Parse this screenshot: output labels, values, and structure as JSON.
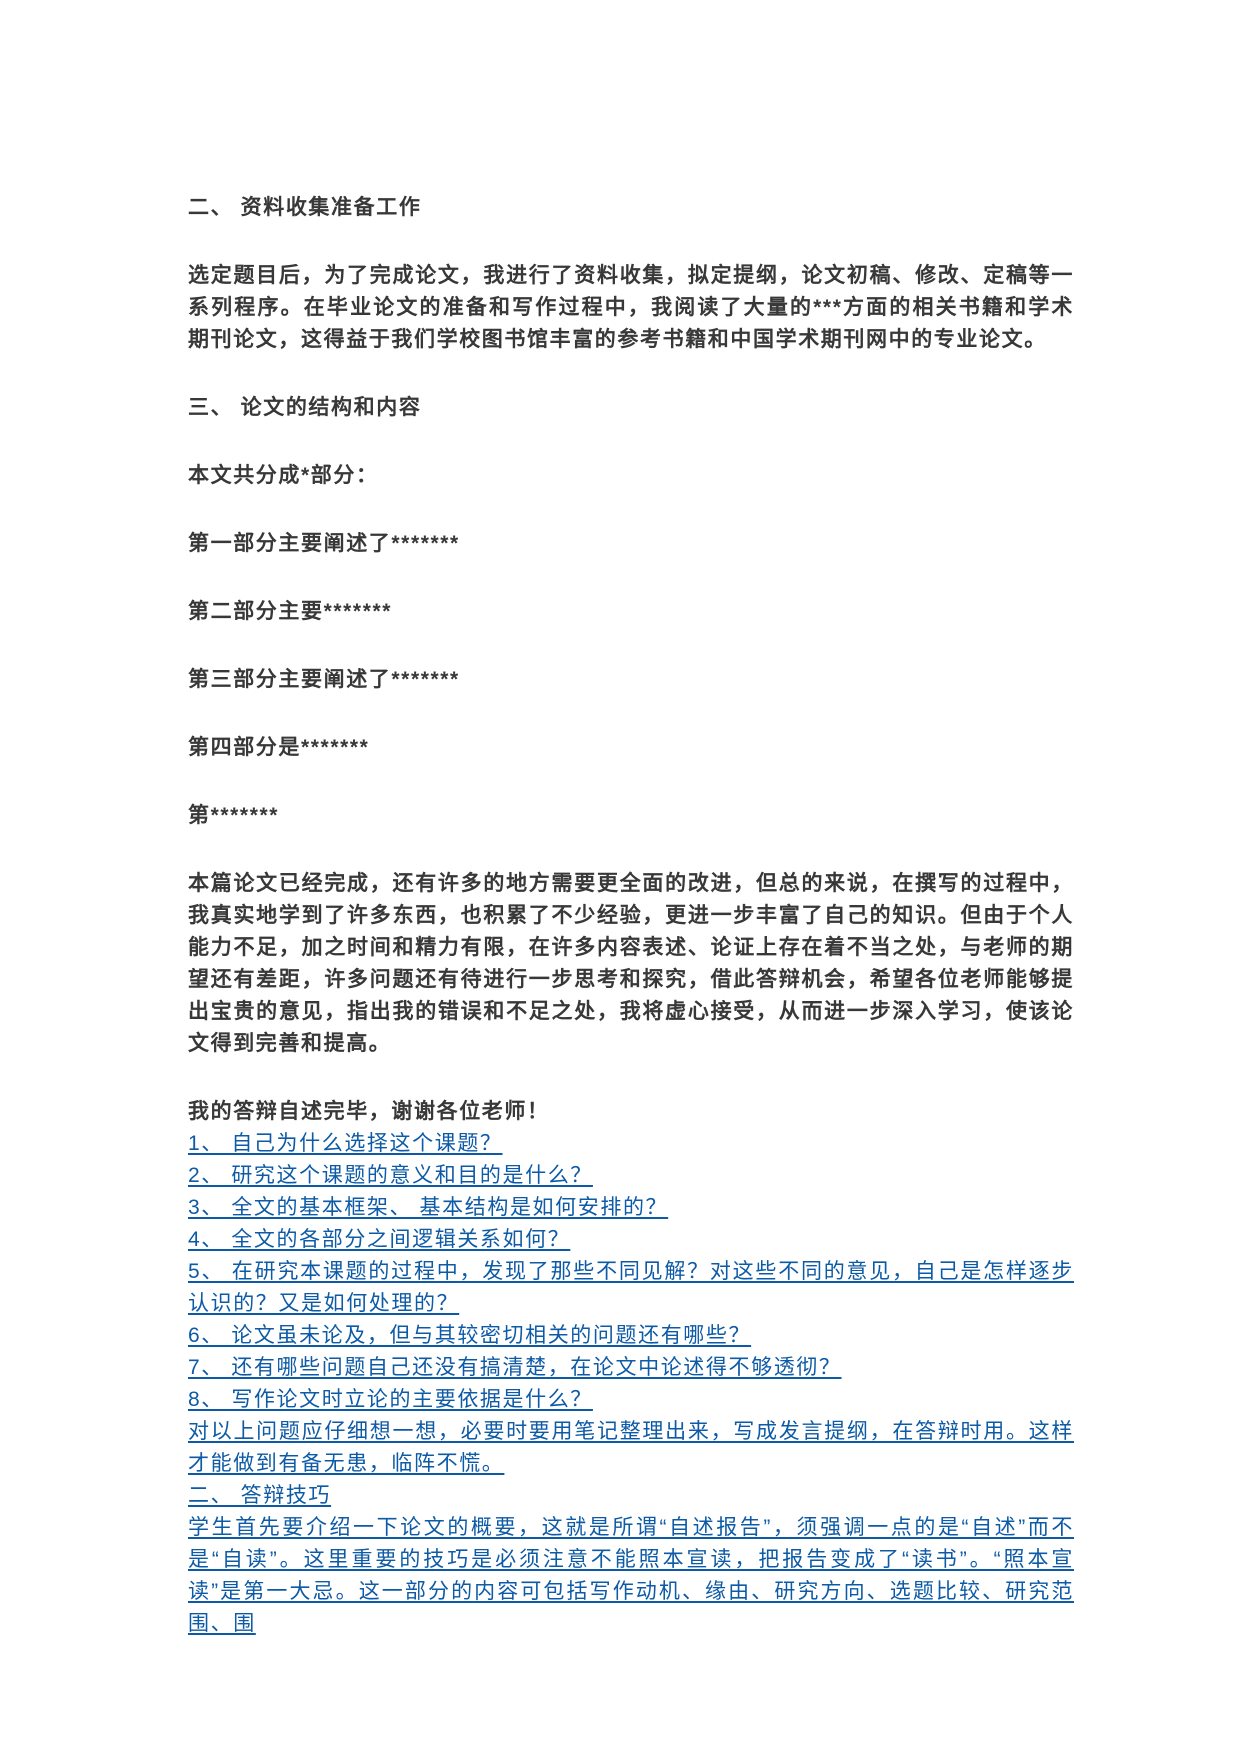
{
  "page": {
    "background": "#ffffff",
    "text_color": "#383838",
    "link_color": "#0d5aa6"
  },
  "sections": {
    "heading_materials": "二、 资料收集准备工作",
    "para_materials": "选定题目后，为了完成论文，我进行了资料收集，拟定提纲，论文初稿、修改、定稿等一系列程序。在毕业论文的准备和写作过程中，我阅读了大量的***方面的相关书籍和学术期刊论文，这得益于我们学校图书馆丰富的参考书籍和中国学术期刊网中的专业论文。",
    "heading_structure": "三、 论文的结构和内容",
    "para_division": "本文共分成*部分：",
    "parts": [
      "第一部分主要阐述了*******",
      "第二部分主要*******",
      "第三部分主要阐述了*******",
      "第四部分是*******",
      "第*******"
    ],
    "para_conclusion": "本篇论文已经完成，还有许多的地方需要更全面的改进，但总的来说，在撰写的过程中，我真实地学到了许多东西，也积累了不少经验，更进一步丰富了自己的知识。但由于个人能力不足，加之时间和精力有限，在许多内容表述、论证上存在着不当之处，与老师的期望还有差距，许多问题还有待进行一步思考和探究，借此答辩机会，希望各位老师能够提出宝贵的意见，指出我的错误和不足之处，我将虚心接受，从而进一步深入学习，使该论文得到完善和提高。",
    "closing": "我的答辩自述完毕，谢谢各位老师！"
  },
  "questions": [
    "1、 自己为什么选择这个课题？",
    "2、 研究这个课题的意义和目的是什么？",
    "3、 全文的基本框架、 基本结构是如何安排的？",
    "4、 全文的各部分之间逻辑关系如何？",
    "5、 在研究本课题的过程中，发现了那些不同见解？对这些不同的意见，自己是怎样逐步认识的？又是如何处理的？",
    "6、 论文虽未论及，但与其较密切相关的问题还有哪些？",
    "7、 还有哪些问题自己还没有搞清楚，在论文中论述得不够透彻？",
    "8、 写作论文时立论的主要依据是什么？"
  ],
  "advice": "对以上问题应仔细想一想，必要时要用笔记整理出来，写成发言提纲，在答辩时用。这样才能做到有备无患，临阵不慌。",
  "tips_heading": "二、 答辩技巧",
  "tips_para": "学生首先要介绍一下论文的概要，这就是所谓“自述报告”，须强调一点的是“自述”而不是“自读”。这里重要的技巧是必须注意不能照本宣读，把报告变成了“读书”。“照本宣读”是第一大忌。这一部分的内容可包括写作动机、缘由、研究方向、选题比较、研究范围、围"
}
